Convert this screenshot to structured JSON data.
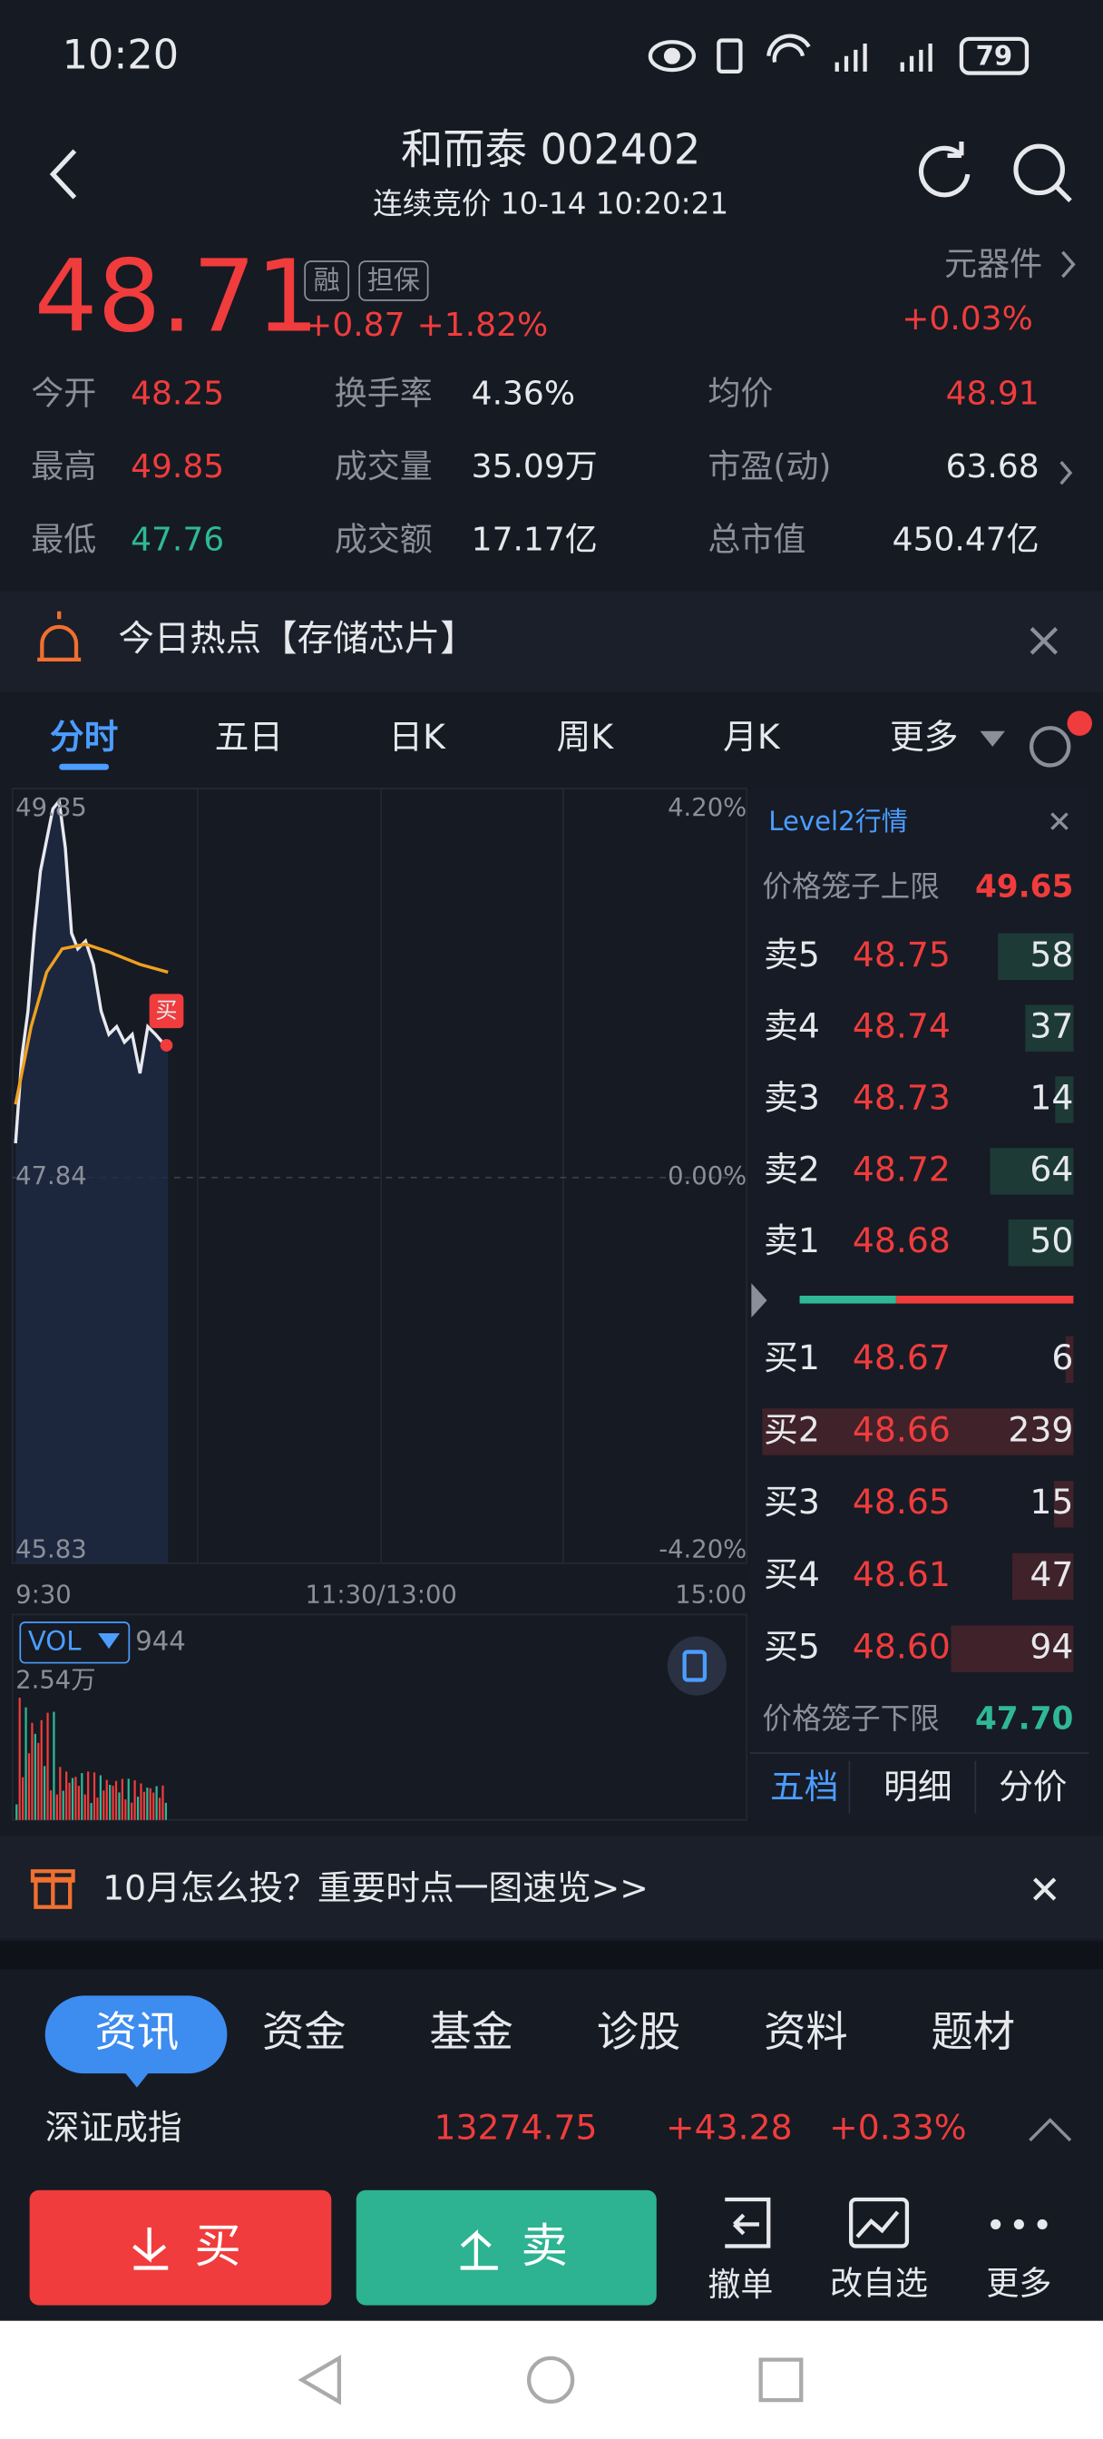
{
  "status_bar": {
    "time": "10:20",
    "battery": "79"
  },
  "header": {
    "title": "和而泰 002402",
    "subtitle": "连续竞价 10-14 10:20:21"
  },
  "quote": {
    "price": "48.71",
    "tags": [
      "融",
      "担保"
    ],
    "change": "+0.87",
    "change_pct": "+1.82%",
    "sector": "元器件",
    "sector_change": "+0.03%"
  },
  "stats": [
    {
      "label": "今开",
      "value": "48.25"
    },
    {
      "label": "换手率",
      "value": "4.36%"
    },
    {
      "label": "均价",
      "value": "48.91"
    },
    {
      "label": "最高",
      "value": "49.85"
    },
    {
      "label": "成交量",
      "value": "35.09万"
    },
    {
      "label": "市盈(动)",
      "value": "63.68"
    },
    {
      "label": "最低",
      "value": "47.76"
    },
    {
      "label": "成交额",
      "value": "17.17亿"
    },
    {
      "label": "总市值",
      "value": "450.47亿"
    }
  ],
  "hot": {
    "text": "今日热点【存储芯片】"
  },
  "tabs": [
    "分时",
    "五日",
    "日K",
    "周K",
    "月K",
    "更多"
  ],
  "chart": {
    "y_labels": [
      "49.85",
      "47.84",
      "45.83"
    ],
    "pct_labels": [
      "4.20%",
      "0.00%",
      "-4.20%"
    ],
    "x_labels": [
      "9:30",
      "11:30/13:00",
      "15:00"
    ],
    "buy_flag": "买",
    "vol_label": "VOL",
    "vol_value": "944",
    "vol_max": "2.54万"
  },
  "order_book": {
    "title": "Level2行情",
    "upper_label": "价格笼子上限",
    "upper": "49.65",
    "asks": [
      {
        "label": "卖5",
        "price": "48.75",
        "volume": 58
      },
      {
        "label": "卖4",
        "price": "48.74",
        "volume": 37
      },
      {
        "label": "卖3",
        "price": "48.73",
        "volume": 14
      },
      {
        "label": "卖2",
        "price": "48.72",
        "volume": 64
      },
      {
        "label": "卖1",
        "price": "48.68",
        "volume": 50
      }
    ],
    "bids": [
      {
        "label": "买1",
        "price": "48.67",
        "volume": 6
      },
      {
        "label": "买2",
        "price": "48.66",
        "volume": 239
      },
      {
        "label": "买3",
        "price": "48.65",
        "volume": 15
      },
      {
        "label": "买4",
        "price": "48.61",
        "volume": 47
      },
      {
        "label": "买5",
        "price": "48.60",
        "volume": 94
      }
    ],
    "lower_label": "价格笼子下限",
    "lower": "47.70",
    "tabs": [
      "五档",
      "明细",
      "分价"
    ]
  },
  "banner": "10月怎么投？重要时点一图速览>>",
  "news_tabs": [
    "资讯",
    "资金",
    "基金",
    "诊股",
    "资料",
    "题材"
  ],
  "index": {
    "name": "深证成指",
    "value": "13274.75",
    "change": "+43.28",
    "pct": "+0.33%"
  },
  "actions": {
    "buy": "买",
    "sell": "卖",
    "others": [
      "撤单",
      "改自选",
      "更多"
    ]
  }
}
